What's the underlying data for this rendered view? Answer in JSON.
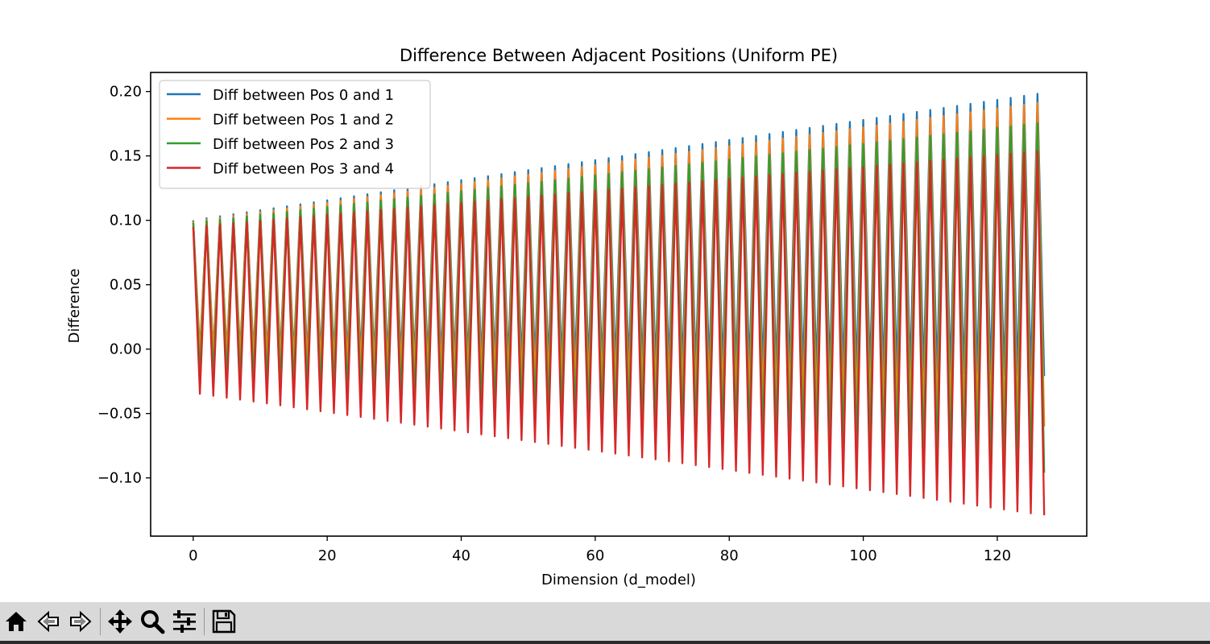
{
  "chart_data": {
    "type": "line",
    "title": "Difference Between Adjacent Positions (Uniform PE)",
    "xlabel": "Dimension (d_model)",
    "ylabel": "Difference",
    "xlim": [
      -6.35,
      133.35
    ],
    "ylim": [
      -0.1452,
      0.2148
    ],
    "xticks": [
      0,
      20,
      40,
      60,
      80,
      100,
      120
    ],
    "yticks": [
      -0.1,
      -0.05,
      0.0,
      0.05,
      0.1,
      0.15,
      0.2
    ],
    "xtick_labels": [
      "0",
      "20",
      "40",
      "60",
      "80",
      "100",
      "120"
    ],
    "ytick_labels": [
      "−0.10",
      "−0.05",
      "0.00",
      "0.05",
      "0.10",
      "0.15",
      "0.20"
    ],
    "legend_position": "upper-left",
    "grid": false,
    "n_points": 128,
    "series": [
      {
        "name": "Diff between Pos 0 and 1",
        "color": "#1f77b4",
        "peaks_even_index": [
          0.1,
          0.199
        ],
        "troughs_odd_index": [
          -0.001,
          -0.021
        ]
      },
      {
        "name": "Diff between Pos 1 and 2",
        "color": "#ff7f0e",
        "peaks_even_index": [
          0.099,
          0.192
        ],
        "troughs_odd_index": [
          -0.003,
          -0.06
        ]
      },
      {
        "name": "Diff between Pos 2 and 3",
        "color": "#2ca02c",
        "peaks_even_index": [
          0.098,
          0.176
        ],
        "troughs_odd_index": [
          -0.02,
          -0.096
        ]
      },
      {
        "name": "Diff between Pos 3 and 4",
        "color": "#d62728",
        "peaks_even_index": [
          0.095,
          0.154
        ],
        "troughs_odd_index": [
          -0.034,
          -0.129
        ]
      }
    ]
  },
  "toolbar": {
    "buttons": [
      {
        "icon": "home-icon"
      },
      {
        "icon": "back-arrow-icon"
      },
      {
        "icon": "forward-arrow-icon"
      },
      {
        "icon": "pan-move-icon"
      },
      {
        "icon": "zoom-magnifier-icon"
      },
      {
        "icon": "configure-subplots-icon"
      },
      {
        "icon": "save-disk-icon"
      }
    ]
  }
}
